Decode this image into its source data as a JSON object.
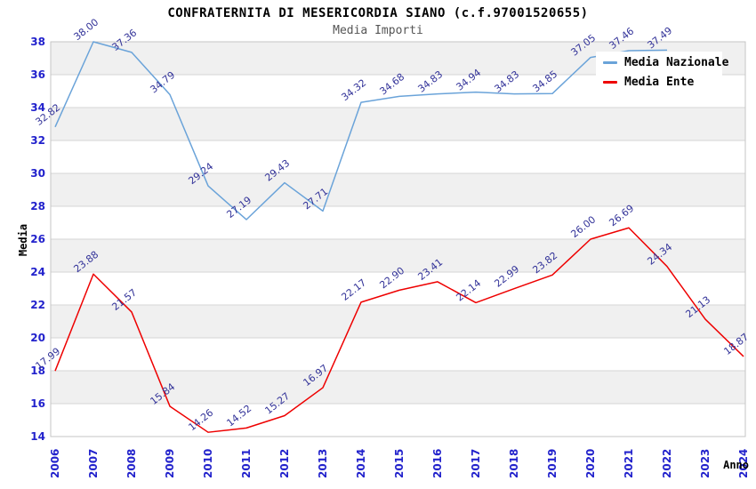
{
  "header": {
    "title": "CONFRATERNITA DI MESERICORDIA SIANO (c.f.97001520655)",
    "subtitle": "Media Importi"
  },
  "legend": {
    "items": [
      {
        "label": "Media Nazionale",
        "color": "#6aa3d9"
      },
      {
        "label": "Media Ente",
        "color": "#ee0000"
      }
    ]
  },
  "colors": {
    "national_line": "#6aa3d9",
    "entity_line": "#ee0000",
    "tick_label": "#2222cc",
    "data_label": "#333399",
    "band_gray": "#f0f0f0",
    "band_white": "#ffffff",
    "gridline": "#d6d6d6",
    "plot_border": "#c6c6c6",
    "subtitle_text": "#555555",
    "axis_title_text": "#000000"
  },
  "chart_data": {
    "type": "line",
    "title": "CONFRATERNITA DI MESERICORDIA SIANO (c.f.97001520655)",
    "subtitle": "Media Importi",
    "xlabel": "Anno",
    "ylabel": "Media",
    "ylim": [
      14,
      38
    ],
    "y_ticks": [
      14,
      16,
      18,
      20,
      22,
      24,
      26,
      28,
      30,
      32,
      34,
      36,
      38
    ],
    "grid": true,
    "banded_background": true,
    "legend_position": "top-right",
    "categories": [
      "2006",
      "2007",
      "2008",
      "2009",
      "2010",
      "2011",
      "2012",
      "2013",
      "2014",
      "2015",
      "2016",
      "2017",
      "2018",
      "2019",
      "2020",
      "2021",
      "2022",
      "2023",
      "2024"
    ],
    "series": [
      {
        "name": "Media Nazionale",
        "color": "#6aa3d9",
        "values": [
          32.82,
          38.0,
          37.36,
          34.79,
          29.24,
          27.19,
          29.43,
          27.71,
          34.32,
          34.68,
          34.83,
          34.94,
          34.83,
          34.85,
          37.05,
          37.46,
          37.49,
          null,
          null
        ]
      },
      {
        "name": "Media Ente",
        "color": "#ee0000",
        "values": [
          17.99,
          23.88,
          21.57,
          15.84,
          14.26,
          14.52,
          15.27,
          16.97,
          22.17,
          22.9,
          23.41,
          22.14,
          22.99,
          23.82,
          26.0,
          26.69,
          24.34,
          21.13,
          18.87
        ]
      }
    ]
  }
}
